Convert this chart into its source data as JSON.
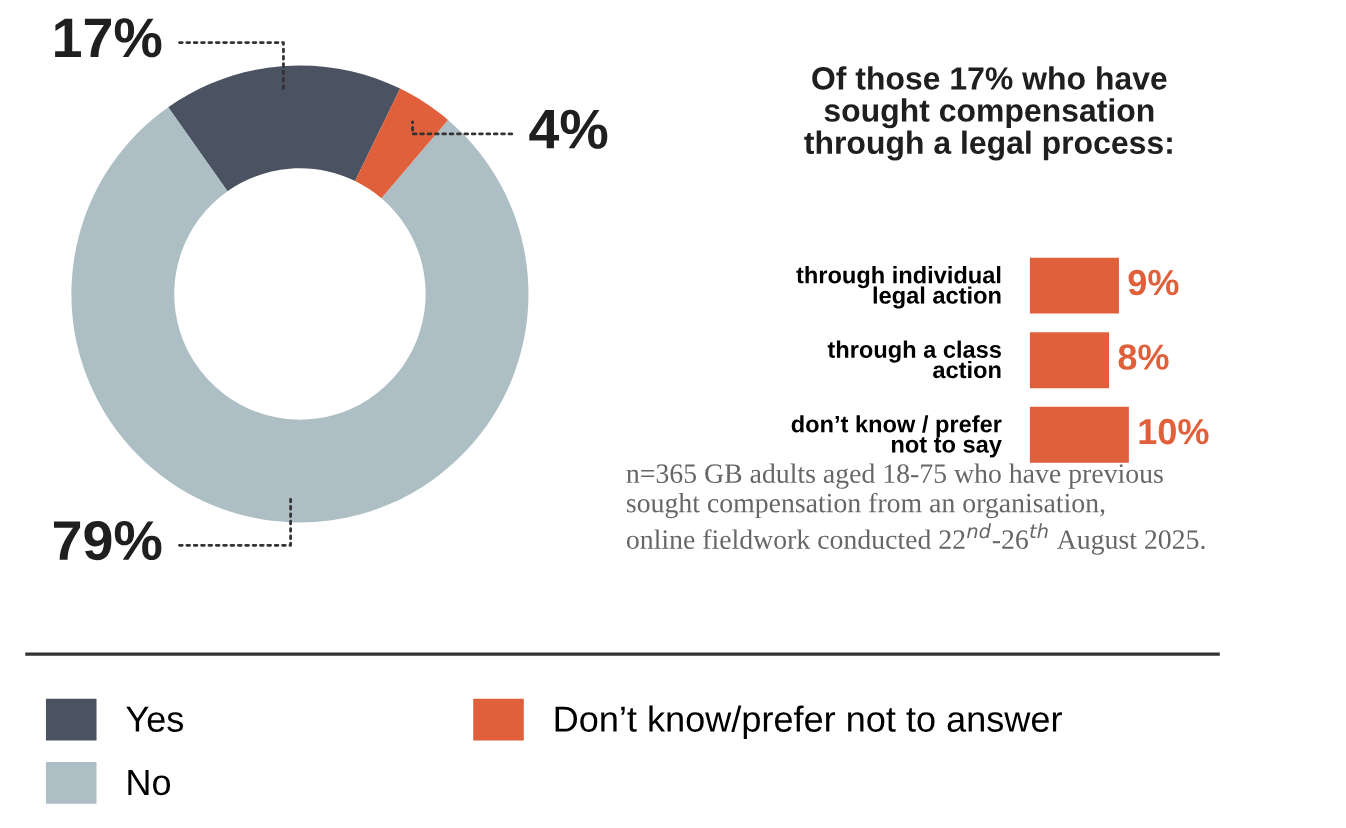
{
  "chart_data": [
    {
      "type": "donut",
      "categories": [
        "Yes",
        "No",
        "Don’t know/prefer not to answer"
      ],
      "values": [
        17,
        79,
        4
      ],
      "colors": [
        "#4b5261",
        "#adbfc4",
        "#e0603b"
      ],
      "value_labels": [
        "17%",
        "79%",
        "4%"
      ],
      "legend": "bottom",
      "annotations": [
        "n=365 GB adults aged 18-75 who have previous\nsought compensation from an organisation,\nonline fieldwork conducted 22$^{nd}$-26$^{th}$ August 2025."
      ]
    },
    {
      "type": "bar",
      "orientation": "horizontal",
      "title": "Of those 17% who have\nsought compensation\nthrough a legal process:",
      "categories": [
        "through individual\nlegal action",
        "through a class\naction",
        "don’t know / prefer\nnot to say"
      ],
      "values": [
        9,
        8,
        10
      ],
      "color": "#e0603b",
      "value_labels": [
        "9%",
        "8%",
        "10%"
      ]
    }
  ]
}
